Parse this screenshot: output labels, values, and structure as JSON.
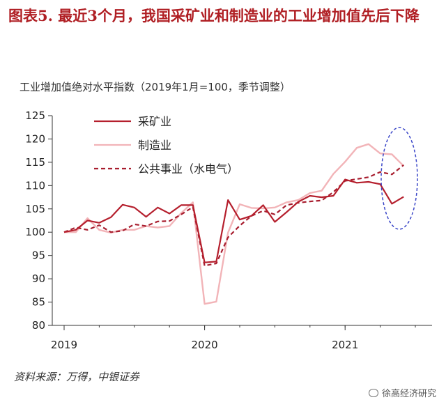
{
  "figure": {
    "title": "图表5.  最近3个月，我国采矿业和制造业的工业增加值先后下降"
  },
  "source_note": "资料来源：万得，中银证券",
  "watermark": "徐高经济研究",
  "colors": {
    "title": "#b01f24",
    "mining": "#b51f2d",
    "manufacturing": "#f2b4b8",
    "utilities": "#a81e2f",
    "ellipse": "#3a46c8"
  },
  "chart_data": {
    "type": "line",
    "title": "工业增加值绝对水平指数（2019年1月=100，季节调整）",
    "xlabel": "",
    "ylabel": "",
    "ylim": [
      80,
      125
    ],
    "yticks": [
      80,
      85,
      90,
      95,
      100,
      105,
      110,
      115,
      120,
      125
    ],
    "xlim": [
      "2019-01",
      "2021-07"
    ],
    "xticks": [
      "2019",
      "2020",
      "2021"
    ],
    "grid": false,
    "legend_position": "top-left",
    "x": [
      "2019-01",
      "2019-02",
      "2019-03",
      "2019-04",
      "2019-05",
      "2019-06",
      "2019-07",
      "2019-08",
      "2019-09",
      "2019-10",
      "2019-11",
      "2019-12",
      "2020-01",
      "2020-02",
      "2020-03",
      "2020-04",
      "2020-05",
      "2020-06",
      "2020-07",
      "2020-08",
      "2020-09",
      "2020-10",
      "2020-11",
      "2020-12",
      "2021-01",
      "2021-02",
      "2021-03",
      "2021-04",
      "2021-05",
      "2021-06"
    ],
    "series": [
      {
        "name": "采矿业",
        "style": "solid",
        "color": "#b51f2d",
        "values": [
          100.0,
          100.5,
          102.5,
          102.0,
          103.2,
          105.9,
          105.3,
          103.3,
          105.3,
          104.0,
          105.8,
          105.8,
          93.5,
          93.7,
          106.9,
          102.7,
          103.5,
          105.8,
          102.2,
          104.3,
          106.5,
          107.8,
          107.5,
          107.8,
          111.3,
          110.6,
          110.8,
          110.3,
          106.1,
          107.6
        ]
      },
      {
        "name": "制造业",
        "style": "solid",
        "color": "#f2b4b8",
        "values": [
          100.0,
          100.0,
          103.0,
          100.5,
          99.9,
          100.5,
          100.5,
          101.3,
          101.0,
          101.3,
          104.1,
          106.4,
          84.6,
          85.1,
          99.9,
          106.0,
          105.2,
          105.1,
          105.3,
          106.4,
          106.9,
          108.4,
          108.9,
          112.5,
          115.1,
          118.1,
          118.9,
          116.9,
          116.7,
          114.2
        ]
      },
      {
        "name": "公共事业（水电气）",
        "style": "dashed",
        "color": "#a81e2f",
        "values": [
          100.0,
          101.0,
          100.5,
          101.5,
          100.0,
          100.3,
          101.7,
          101.3,
          102.3,
          102.4,
          103.8,
          105.4,
          92.8,
          93.3,
          98.9,
          101.4,
          103.5,
          104.6,
          103.8,
          105.8,
          106.3,
          106.6,
          106.8,
          108.6,
          111.0,
          111.4,
          111.8,
          112.9,
          112.4,
          114.4
        ]
      }
    ]
  }
}
